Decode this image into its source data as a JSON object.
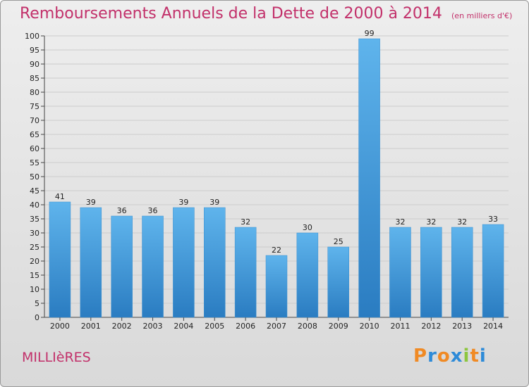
{
  "header": {
    "title": "Remboursements Annuels de la Dette de 2000 à 2014",
    "unit": "(en milliers d'€)"
  },
  "footer": {
    "commune": "MILLIèRES",
    "logo": [
      {
        "char": "P",
        "color": "#f08a24"
      },
      {
        "char": "r",
        "color": "#2e8bd8"
      },
      {
        "char": "o",
        "color": "#f08a24"
      },
      {
        "char": "x",
        "color": "#2e8bd8"
      },
      {
        "char": "i",
        "color": "#8dc63f"
      },
      {
        "char": "t",
        "color": "#f08a24"
      },
      {
        "char": "i",
        "color": "#2e8bd8"
      }
    ]
  },
  "colors": {
    "title": "#c2306a",
    "bar_light": "#5fb4ec",
    "bar_dark": "#2a7cc1",
    "grid": "#cccccc"
  },
  "chart_data": {
    "type": "bar",
    "title": "Remboursements Annuels de la Dette de 2000 à 2014",
    "xlabel": "",
    "ylabel": "",
    "ylim": [
      0,
      100
    ],
    "ytick_step": 5,
    "grid": true,
    "categories": [
      "2000",
      "2001",
      "2002",
      "2003",
      "2004",
      "2005",
      "2006",
      "2007",
      "2008",
      "2009",
      "2010",
      "2011",
      "2012",
      "2013",
      "2014"
    ],
    "values": [
      41,
      39,
      36,
      36,
      39,
      39,
      32,
      22,
      30,
      25,
      99,
      32,
      32,
      32,
      33
    ]
  }
}
